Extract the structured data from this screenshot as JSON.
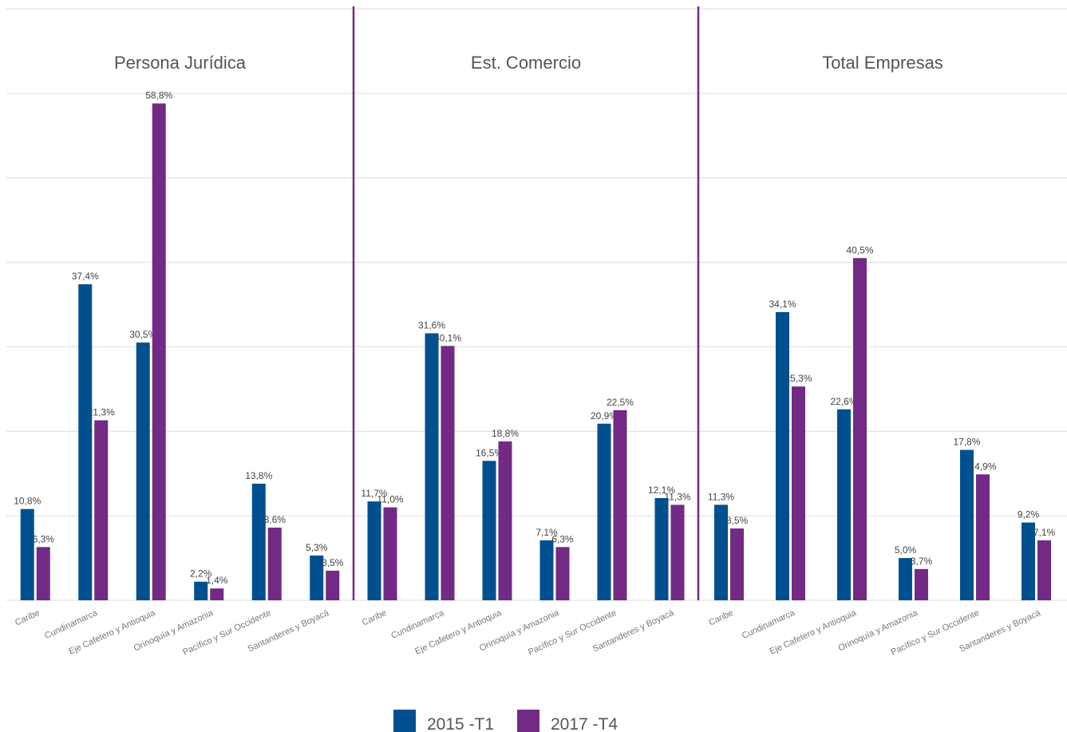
{
  "chart_data": {
    "type": "bar",
    "categories": [
      "Caribe",
      "Cundinamarca",
      "Eje Cafetero y Antioquia",
      "Orinoquía y Amazonia",
      "Pacífico y Sur Occidente",
      "Santanderes y Boyacá"
    ],
    "ylim": [
      0,
      70
    ],
    "yticks": [
      0,
      10,
      20,
      30,
      40,
      50,
      60,
      70
    ],
    "grid": true,
    "legend": "bottom",
    "series": [
      {
        "name": "2015 -T1",
        "color": "#00508f"
      },
      {
        "name": "2017 -T4",
        "color": "#722a85"
      }
    ],
    "divider_color": "#722a85",
    "panels": [
      {
        "title": "Persona Jurídica",
        "values": [
          [
            10.8,
            37.4,
            30.5,
            2.2,
            13.8,
            5.3
          ],
          [
            6.3,
            21.3,
            58.8,
            1.4,
            8.6,
            3.5
          ]
        ],
        "value_labels": [
          [
            "10,8%",
            "37,4%",
            "30,5%",
            "2,2%",
            "13,8%",
            "5,3%"
          ],
          [
            "6,3%",
            "21,3%",
            "58,8%",
            "1,4%",
            "8,6%",
            "3,5%"
          ]
        ]
      },
      {
        "title": "Est. Comercio",
        "values": [
          [
            11.7,
            31.6,
            16.5,
            7.1,
            20.9,
            12.1
          ],
          [
            11.0,
            30.1,
            18.8,
            6.3,
            22.5,
            11.3
          ]
        ],
        "value_labels": [
          [
            "11,7%",
            "31,6%",
            "16,5%",
            "7,1%",
            "20,9%",
            "12,1%"
          ],
          [
            "11,0%",
            "30,1%",
            "18,8%",
            "6,3%",
            "22,5%",
            "11,3%"
          ]
        ]
      },
      {
        "title": "Total Empresas",
        "values": [
          [
            11.3,
            34.1,
            22.6,
            5.0,
            17.8,
            9.2
          ],
          [
            8.5,
            25.3,
            40.5,
            3.7,
            14.9,
            7.1
          ]
        ],
        "value_labels": [
          [
            "11,3%",
            "34,1%",
            "22,6%",
            "5,0%",
            "17,8%",
            "9,2%"
          ],
          [
            "8,5%",
            "25,3%",
            "40,5%",
            "3,7%",
            "14,9%",
            "7,1%"
          ]
        ]
      }
    ]
  }
}
